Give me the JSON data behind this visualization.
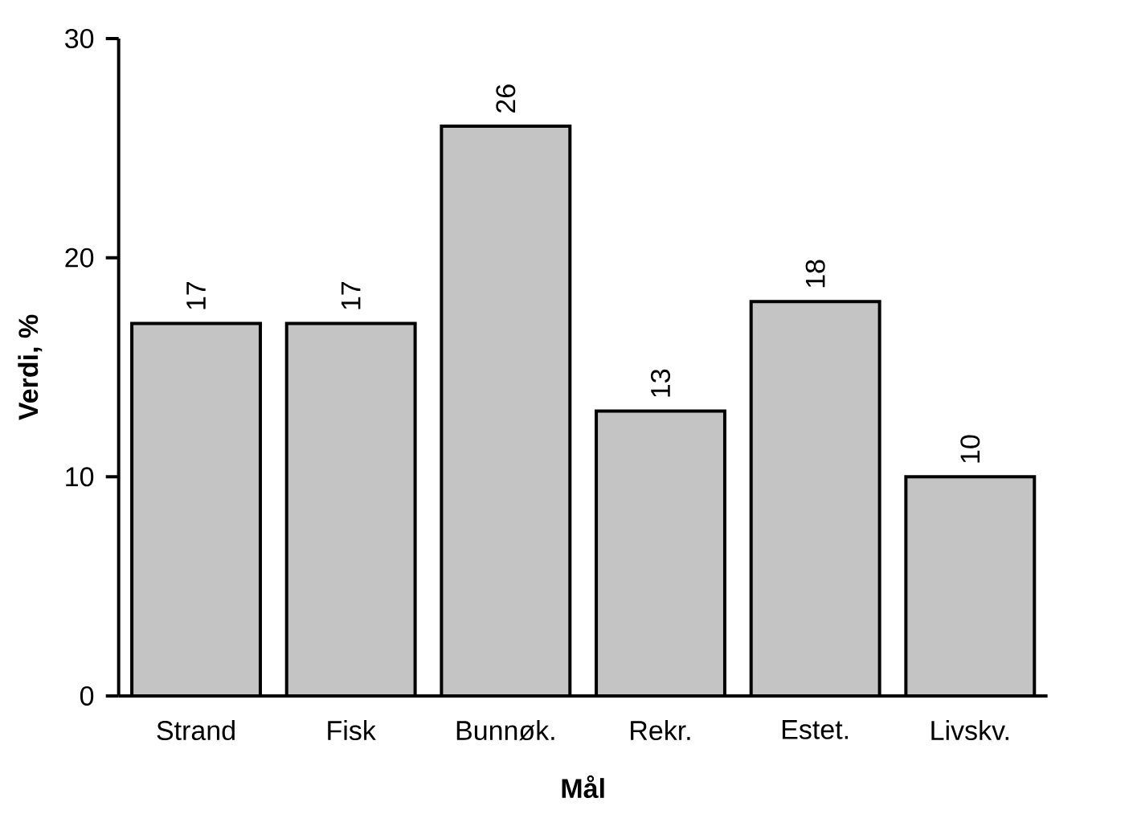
{
  "chart_data": {
    "type": "bar",
    "xlabel": "Mål",
    "ylabel": "Verdi, %",
    "categories": [
      "Strand",
      "Fisk",
      "Bunnøk.",
      "Rekr.",
      "Estet.",
      "Livskv."
    ],
    "values": [
      17,
      17,
      26,
      13,
      18,
      10
    ],
    "color": "#c4c4c4",
    "ylim": [
      0,
      30
    ],
    "yticks": [
      0,
      10,
      20,
      30
    ],
    "data_labels": true
  }
}
